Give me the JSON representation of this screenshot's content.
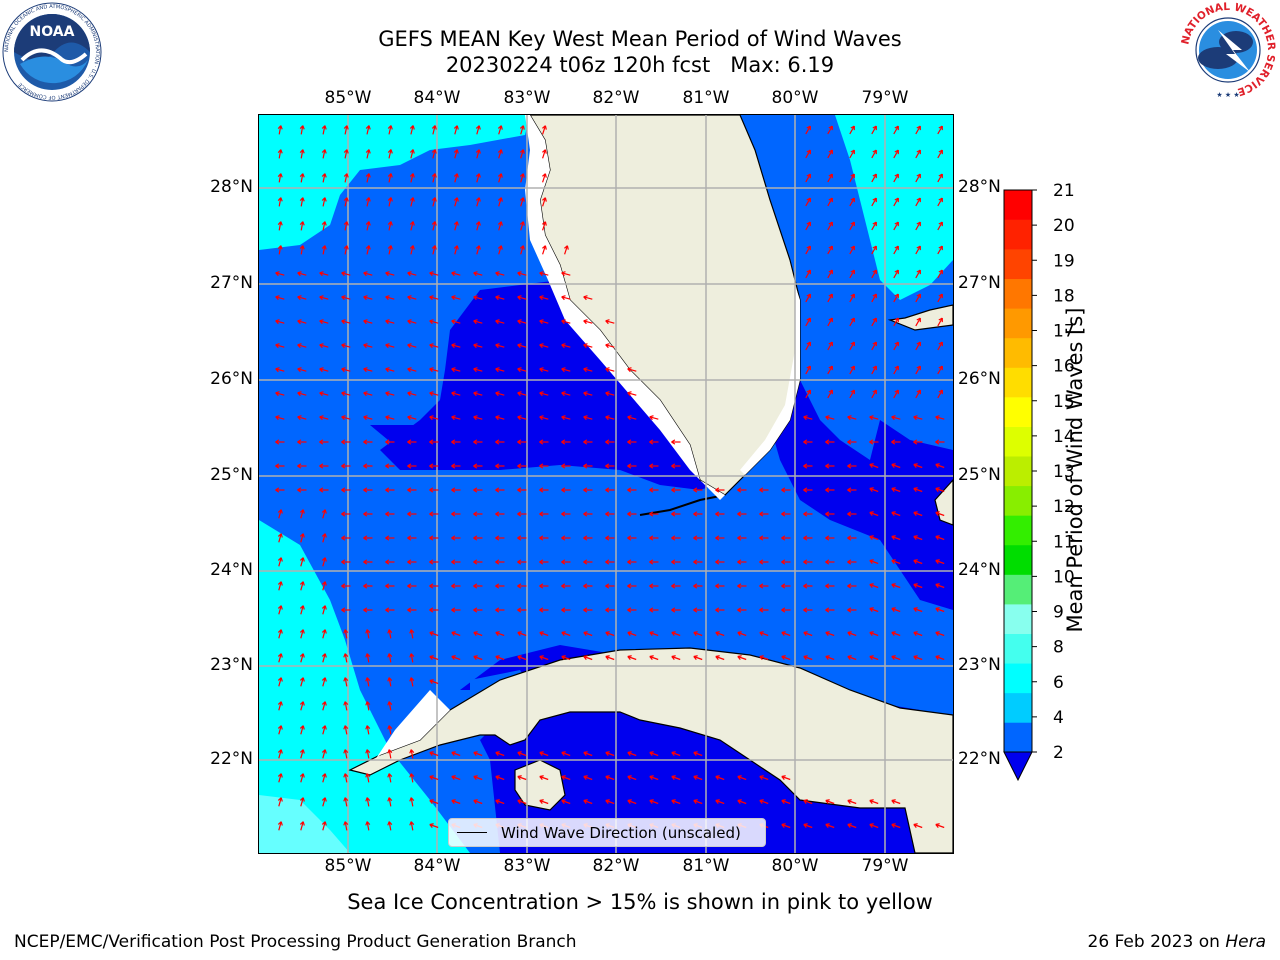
{
  "title": {
    "line1": "GEFS MEAN Key West Mean Period of Wind Waves",
    "line2": "20230224 t06z 120h fcst   Max: 6.19"
  },
  "map": {
    "lon_labels": [
      "85°W",
      "84°W",
      "83°W",
      "82°W",
      "81°W",
      "80°W",
      "79°W"
    ],
    "lat_labels": [
      "28°N",
      "27°N",
      "26°N",
      "25°N",
      "24°N",
      "23°N",
      "22°N"
    ],
    "legend_text": "Wind Wave Direction (unscaled)",
    "land_color": "#eeeedd",
    "arrow_color": "#ff0000"
  },
  "colorbar": {
    "label": "Mean Period of Wind Waves [s]",
    "ticks": [
      "2",
      "4",
      "6",
      "8",
      "9",
      "10",
      "11",
      "12",
      "13",
      "14",
      "15",
      "16",
      "17",
      "18",
      "19",
      "20",
      "21"
    ],
    "colors": [
      "#0066ff",
      "#00ccff",
      "#00ffff",
      "#44ffee",
      "#88ffee",
      "#55ee77",
      "#00dd00",
      "#33ee00",
      "#88ee00",
      "#bbee00",
      "#ddff00",
      "#ffff00",
      "#ffdd00",
      "#ffbb00",
      "#ff9900",
      "#ff7700",
      "#ff4400",
      "#ff2200",
      "#ff0000"
    ]
  },
  "logos": {
    "noaa_text": "NOAA",
    "noaa_ring": "NATIONAL OCEANIC AND ATMOSPHERIC ADMINISTRATION · U.S. DEPARTMENT OF COMMERCE",
    "nws_ring": "NATIONAL WEATHER SERVICE"
  },
  "subtitle": "Sea Ice Concentration > 15% is shown in pink to yellow",
  "footer": {
    "left": "NCEP/EMC/Verification Post Processing Product Generation Branch",
    "right_prefix": "26 Feb 2023 on ",
    "right_machine": "Hera"
  }
}
